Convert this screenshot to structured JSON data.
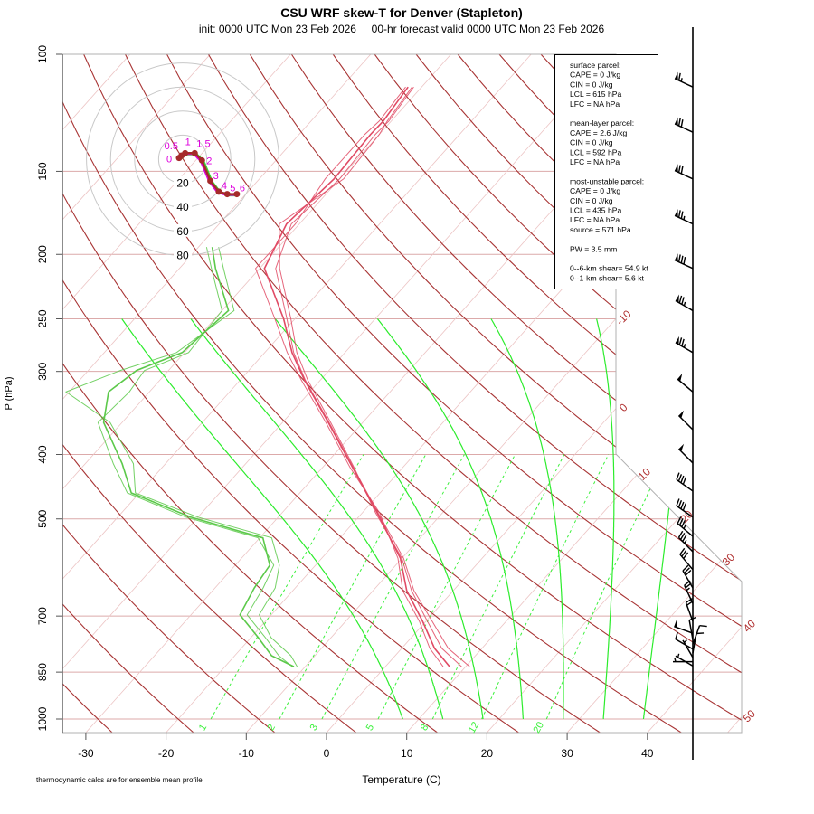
{
  "header": {
    "title": "CSU WRF skew-T for Denver (Stapleton)",
    "subtitle": "init: 0000 UTC Mon 23 Feb 2026     00-hr forecast valid 0000 UTC Mon 23 Feb 2026"
  },
  "footer_note": "thermodynamic calcs are for ensemble mean profile",
  "info_box": [
    "surface parcel:",
    "CAPE = 0 J/kg",
    "CIN = 0 J/kg",
    "LCL = 615 hPa",
    "LFC = NA hPa",
    "",
    "mean-layer parcel:",
    "CAPE = 2.6 J/kg",
    "CIN = 0 J/kg",
    "LCL = 592 hPa",
    "LFC = NA hPa",
    "",
    "most-unstable parcel:",
    "CAPE = 0 J/kg",
    "CIN = 0 J/kg",
    "LCL = 435 hPa",
    "LFC = NA hPa",
    "source = 571 hPa",
    "",
    "PW =  3.5 mm",
    "",
    "0--6-km shear= 54.9 kt",
    "0--1-km shear= 5.6 kt"
  ],
  "colors": {
    "temperature": "#e04a64",
    "dewpoint": "#5cc94a",
    "dry_adiabat": "#a83434",
    "isotherm": "#ecc4c4",
    "isobar": "#dcaaaa",
    "moist_adiabat": "#2cec2c",
    "mixing_ratio": "#3cf03c",
    "hodo_line": "#a52a2a",
    "hodo_label": "#dd00dd",
    "isotherm_label": "#b03030"
  },
  "chart_data": {
    "type": "skew-T",
    "xlabel": "Temperature (C)",
    "ylabel": "P (hPa)",
    "xlim": [
      -33,
      45
    ],
    "ylim_hpa": [
      1050,
      100
    ],
    "xticks": [
      -30,
      -20,
      -10,
      0,
      10,
      20,
      30,
      40
    ],
    "yticks": [
      100,
      150,
      200,
      250,
      300,
      400,
      500,
      700,
      850,
      1000
    ],
    "isotherm_labels": [
      -10,
      0,
      10,
      20,
      30,
      40,
      50
    ],
    "mixing_ratio_gkg": [
      1,
      2,
      3,
      5,
      8,
      12,
      20
    ],
    "moist_adiabat_T1000": [
      8,
      13,
      18,
      23,
      28,
      33,
      38
    ],
    "temperature": {
      "pressure": [
        834,
        783,
        713,
        641,
        573,
        490,
        419,
        358,
        309,
        281,
        250,
        210,
        180,
        154,
        132,
        126,
        112
      ],
      "members": [
        [
          8.0,
          4.1,
          -0.4,
          -5.8,
          -10.2,
          -18.1,
          -26.2,
          -34.3,
          -42.0,
          -46.6,
          -51.4,
          -59.4,
          -61.6,
          -60.7,
          -61.1,
          -61.0,
          -61.7
        ],
        [
          9.5,
          5.0,
          0.2,
          -5.2,
          -10.0,
          -18.3,
          -26.0,
          -34.0,
          -41.6,
          -46.0,
          -50.5,
          -57.5,
          -62.5,
          -59.5,
          -60.0,
          -60.5,
          -61.2
        ],
        [
          7.2,
          3.5,
          -0.8,
          -6.3,
          -10.5,
          -17.8,
          -26.5,
          -34.6,
          -42.4,
          -47.2,
          -52.5,
          -60.5,
          -60.5,
          -61.8,
          -61.8,
          -61.5,
          -62.0
        ],
        [
          10.5,
          5.8,
          0.8,
          -4.9,
          -9.8,
          -18.0,
          -26.1,
          -34.2,
          -41.9,
          -46.4,
          -51.0,
          -58.0,
          -61.0,
          -60.0,
          -60.5,
          -60.3,
          -61.0
        ]
      ]
    },
    "dewpoint": {
      "pressure": [
        834,
        803,
        754,
        697,
        635,
        587,
        534,
        497,
        457,
        413,
        358,
        322,
        299,
        281,
        243,
        210,
        195
      ],
      "members": [
        [
          -11.4,
          -15.4,
          -19.1,
          -23.9,
          -25.1,
          -25.7,
          -29.6,
          -40.9,
          -51.0,
          -55.4,
          -62.3,
          -65.1,
          -64.0,
          -60.3,
          -59.2,
          -65.5,
          -68.3
        ],
        [
          -11.0,
          -13.0,
          -17.5,
          -21.5,
          -22.5,
          -24.5,
          -28.5,
          -40.0,
          -50.5,
          -54.0,
          -61.5,
          -70.4,
          -66.0,
          -61.0,
          -58.5,
          -64.5,
          -67.5
        ],
        [
          -11.6,
          -14.5,
          -18.2,
          -23.0,
          -24.0,
          -25.2,
          -30.2,
          -41.5,
          -51.5,
          -56.5,
          -63.0,
          -62.5,
          -63.0,
          -59.5,
          -60.0,
          -66.0,
          -69.0
        ]
      ]
    },
    "wind_barbs": [
      {
        "p": 112,
        "dir": 295,
        "kt": 65
      },
      {
        "p": 131,
        "dir": 295,
        "kt": 70
      },
      {
        "p": 154,
        "dir": 295,
        "kt": 70
      },
      {
        "p": 180,
        "dir": 295,
        "kt": 75
      },
      {
        "p": 210,
        "dir": 295,
        "kt": 80
      },
      {
        "p": 243,
        "dir": 300,
        "kt": 75
      },
      {
        "p": 281,
        "dir": 300,
        "kt": 75
      },
      {
        "p": 322,
        "dir": 310,
        "kt": 50
      },
      {
        "p": 367,
        "dir": 315,
        "kt": 50
      },
      {
        "p": 412,
        "dir": 315,
        "kt": 50
      },
      {
        "p": 454,
        "dir": 305,
        "kt": 40
      },
      {
        "p": 497,
        "dir": 305,
        "kt": 40
      },
      {
        "p": 531,
        "dir": 310,
        "kt": 35
      },
      {
        "p": 560,
        "dir": 315,
        "kt": 35
      },
      {
        "p": 596,
        "dir": 320,
        "kt": 30
      },
      {
        "p": 635,
        "dir": 330,
        "kt": 30
      },
      {
        "p": 670,
        "dir": 335,
        "kt": 25
      },
      {
        "p": 713,
        "dir": 340,
        "kt": 20
      },
      {
        "p": 743,
        "dir": 290,
        "kt": 50
      },
      {
        "p": 760,
        "dir": 350,
        "kt": 10
      },
      {
        "p": 772,
        "dir": 20,
        "kt": 10
      },
      {
        "p": 785,
        "dir": 300,
        "kt": 10
      },
      {
        "p": 796,
        "dir": 10,
        "kt": 10
      },
      {
        "p": 808,
        "dir": 330,
        "kt": 5
      },
      {
        "p": 820,
        "dir": 270,
        "kt": 5
      },
      {
        "p": 832,
        "dir": 300,
        "kt": 5
      }
    ],
    "hodograph": {
      "rings_kt": [
        20,
        40,
        60,
        80
      ],
      "points": [
        {
          "label": "0",
          "u": -3,
          "v": 1
        },
        {
          "label": "0.5",
          "u": -1,
          "v": 3
        },
        {
          "label": "1",
          "u": 2,
          "v": 5
        },
        {
          "label": "1.5",
          "u": 10,
          "v": 5
        },
        {
          "label": "2",
          "u": 16,
          "v": -1
        },
        {
          "label": "3",
          "u": 23,
          "v": -18
        },
        {
          "label": "4",
          "u": 30,
          "v": -27
        },
        {
          "label": "5",
          "u": 37,
          "v": -29
        },
        {
          "label": "6",
          "u": 45,
          "v": -29
        }
      ]
    }
  }
}
